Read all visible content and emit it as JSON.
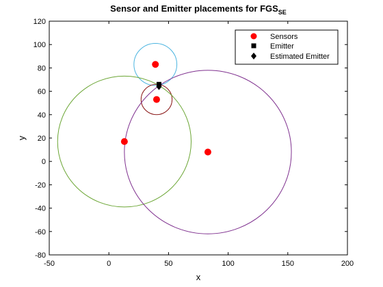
{
  "chart_data": {
    "type": "scatter",
    "title": "Sensor and Emitter placements for FGS",
    "title_subscript": "SE",
    "xlabel": "x",
    "ylabel": "y",
    "xlim": [
      -50,
      200
    ],
    "ylim": [
      -80,
      120
    ],
    "xticks": [
      -50,
      0,
      50,
      100,
      150,
      200
    ],
    "yticks": [
      -80,
      -60,
      -40,
      -20,
      0,
      20,
      40,
      60,
      80,
      100,
      120
    ],
    "grid": false,
    "legend_position": "top-right",
    "series": [
      {
        "name": "Sensors",
        "marker": "circle",
        "color": "#ff0000",
        "points": [
          {
            "x": 39,
            "y": 83
          },
          {
            "x": 40,
            "y": 53
          },
          {
            "x": 13,
            "y": 17
          },
          {
            "x": 83,
            "y": 8
          }
        ]
      },
      {
        "name": "Emitter",
        "marker": "square",
        "color": "#000000",
        "points": [
          {
            "x": 42,
            "y": 66
          }
        ]
      },
      {
        "name": "Estimated Emitter",
        "marker": "diamond",
        "color": "#000000",
        "points": [
          {
            "x": 42,
            "y": 64
          }
        ]
      }
    ],
    "range_circles": [
      {
        "cx": 39,
        "cy": 83,
        "r": 18,
        "color": "#4ab4e0"
      },
      {
        "cx": 40,
        "cy": 53,
        "r": 13,
        "color": "#8b1a1a"
      },
      {
        "cx": 13,
        "cy": 17,
        "r": 56,
        "color": "#6aa533"
      },
      {
        "cx": 83,
        "cy": 8,
        "r": 70,
        "color": "#7e2f8e"
      }
    ]
  }
}
